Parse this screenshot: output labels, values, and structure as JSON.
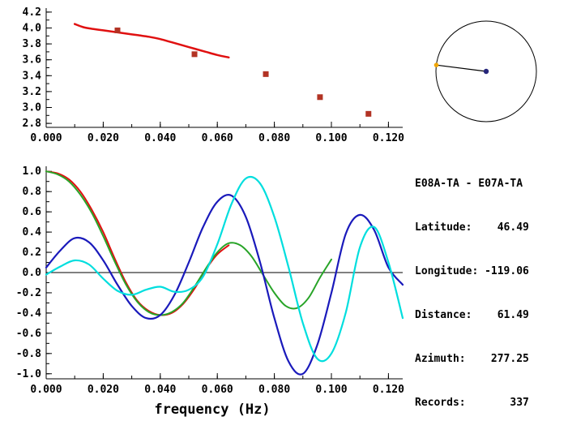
{
  "window": {
    "background": "#ffffff"
  },
  "info_panel": {
    "title": "E08A-TA - E07A-TA",
    "rows": [
      {
        "label": "Latitude:",
        "value": "46.49"
      },
      {
        "label": "Longitude:",
        "value": "-119.06"
      },
      {
        "label": "Distance:",
        "value": "61.49"
      },
      {
        "label": "Azimuth:",
        "value": "277.25"
      },
      {
        "label": "Records:",
        "value": "337"
      }
    ]
  },
  "azimuth_dial": {
    "azimuth_deg": 277.25,
    "circle_color": "#000000",
    "line_color": "#000000",
    "center_dot_color": "#26267a",
    "edge_dot_color": "#f0a500"
  },
  "chart_data": [
    {
      "id": "dispersion-curve",
      "type": "line",
      "title": "",
      "xlabel": "",
      "ylabel": "",
      "xlim": [
        0,
        0.125
      ],
      "ylim": [
        2.75,
        4.25
      ],
      "xticks": [
        "0.000",
        "0.020",
        "0.040",
        "0.060",
        "0.080",
        "0.100",
        "0.120"
      ],
      "yticks": [
        "2.8",
        "3.0",
        "3.2",
        "3.4",
        "3.6",
        "3.8",
        "4.0",
        "4.2"
      ],
      "x_minor_step": 0.01,
      "y_minor_step": 0.1,
      "grid": false,
      "zero_line": false,
      "series": [
        {
          "name": "reference-curve",
          "type": "line",
          "color": "#e01010",
          "width": 2.5,
          "x": [
            0.01,
            0.013,
            0.016,
            0.02,
            0.024,
            0.028,
            0.032,
            0.036,
            0.04,
            0.044,
            0.048,
            0.052,
            0.056,
            0.06,
            0.064
          ],
          "y": [
            4.05,
            4.01,
            3.99,
            3.97,
            3.95,
            3.93,
            3.91,
            3.89,
            3.86,
            3.82,
            3.78,
            3.74,
            3.7,
            3.66,
            3.63
          ]
        },
        {
          "name": "measured-phase-velocity",
          "type": "scatter",
          "marker": "square",
          "color": "#b23324",
          "size": 7,
          "x": [
            0.025,
            0.052,
            0.077,
            0.096,
            0.113
          ],
          "y": [
            3.97,
            3.67,
            3.42,
            3.13,
            2.92
          ]
        }
      ]
    },
    {
      "id": "cross-spectrum",
      "type": "line",
      "title": "",
      "xlabel": "frequency (Hz)",
      "ylabel": "",
      "xlim": [
        0,
        0.125
      ],
      "ylim": [
        -1.05,
        1.05
      ],
      "xticks": [
        "0.000",
        "0.020",
        "0.040",
        "0.060",
        "0.080",
        "0.100",
        "0.120"
      ],
      "yticks": [
        "-1.0",
        "-0.8",
        "-0.6",
        "-0.4",
        "-0.2",
        "0.0",
        "0.2",
        "0.4",
        "0.6",
        "0.8",
        "1.0"
      ],
      "x_minor_step": 0.01,
      "y_minor_step": 0.1,
      "grid": false,
      "zero_line": true,
      "series": [
        {
          "name": "red-series",
          "type": "line",
          "color": "#e01010",
          "width": 2,
          "x": [
            0,
            0.004,
            0.008,
            0.012,
            0.016,
            0.02,
            0.024,
            0.028,
            0.032,
            0.036,
            0.04,
            0.044,
            0.048,
            0.052,
            0.056,
            0.06,
            0.064
          ],
          "y": [
            1.0,
            0.98,
            0.92,
            0.8,
            0.62,
            0.4,
            0.14,
            -0.1,
            -0.28,
            -0.38,
            -0.42,
            -0.4,
            -0.31,
            -0.16,
            0.03,
            0.18,
            0.27
          ]
        },
        {
          "name": "green-series",
          "type": "line",
          "color": "#28a428",
          "width": 2,
          "x": [
            0,
            0.004,
            0.008,
            0.012,
            0.016,
            0.02,
            0.024,
            0.028,
            0.032,
            0.036,
            0.04,
            0.044,
            0.048,
            0.052,
            0.056,
            0.06,
            0.064,
            0.068,
            0.072,
            0.076,
            0.08,
            0.084,
            0.088,
            0.092,
            0.096,
            0.1
          ],
          "y": [
            1.0,
            0.97,
            0.9,
            0.77,
            0.59,
            0.36,
            0.11,
            -0.12,
            -0.29,
            -0.39,
            -0.42,
            -0.39,
            -0.3,
            -0.14,
            0.04,
            0.2,
            0.29,
            0.27,
            0.16,
            -0.02,
            -0.2,
            -0.33,
            -0.35,
            -0.25,
            -0.05,
            0.13
          ]
        },
        {
          "name": "blue-series",
          "type": "line",
          "color": "#1a1abb",
          "width": 2.2,
          "x": [
            0,
            0.005,
            0.01,
            0.015,
            0.02,
            0.025,
            0.03,
            0.035,
            0.04,
            0.045,
            0.05,
            0.055,
            0.06,
            0.065,
            0.07,
            0.075,
            0.08,
            0.085,
            0.09,
            0.095,
            0.1,
            0.105,
            0.11,
            0.115,
            0.12,
            0.125
          ],
          "y": [
            0.05,
            0.22,
            0.34,
            0.3,
            0.12,
            -0.12,
            -0.33,
            -0.45,
            -0.42,
            -0.22,
            0.1,
            0.45,
            0.7,
            0.76,
            0.55,
            0.1,
            -0.45,
            -0.88,
            -1.0,
            -0.72,
            -0.2,
            0.38,
            0.57,
            0.42,
            0.05,
            -0.12
          ]
        },
        {
          "name": "cyan-series",
          "type": "line",
          "color": "#00dede",
          "width": 2.2,
          "x": [
            0,
            0.005,
            0.01,
            0.015,
            0.02,
            0.025,
            0.03,
            0.035,
            0.04,
            0.045,
            0.05,
            0.055,
            0.06,
            0.065,
            0.07,
            0.075,
            0.08,
            0.085,
            0.09,
            0.095,
            0.1,
            0.105,
            0.11,
            0.115,
            0.12,
            0.125
          ],
          "y": [
            -0.02,
            0.06,
            0.12,
            0.08,
            -0.06,
            -0.18,
            -0.22,
            -0.17,
            -0.14,
            -0.19,
            -0.17,
            -0.04,
            0.28,
            0.68,
            0.93,
            0.88,
            0.55,
            0.05,
            -0.5,
            -0.85,
            -0.8,
            -0.4,
            0.25,
            0.45,
            0.1,
            -0.45
          ]
        }
      ]
    }
  ]
}
